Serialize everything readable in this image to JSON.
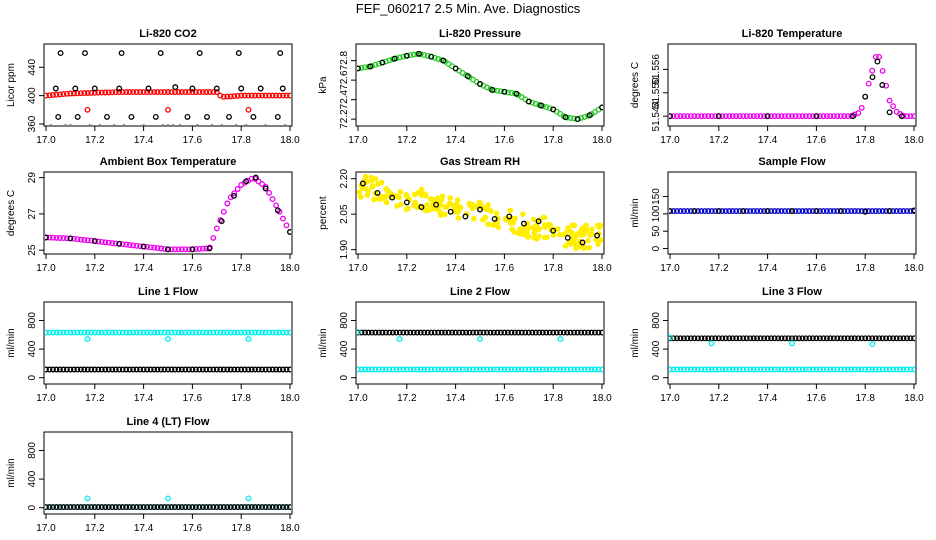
{
  "page": {
    "title": "FEF_060217  2.5 Min. Ave. Diagnostics"
  },
  "chart_data": [
    {
      "type": "scatter",
      "title": "Li-820 CO2",
      "ylabel": "Licor ppm",
      "xlim": [
        17.0,
        18.0
      ],
      "ylim": [
        360,
        470
      ],
      "xticks": [
        "17.0",
        "17.2",
        "17.4",
        "17.6",
        "17.8",
        "18.0"
      ],
      "yticks": [
        "360",
        "400",
        "440"
      ],
      "series": [
        {
          "color": "#ff0000",
          "kind": "band",
          "x": [
            17.0,
            17.1,
            17.2,
            17.3,
            17.4,
            17.5,
            17.6,
            17.7,
            17.72,
            17.8,
            17.9,
            18.0
          ],
          "y": [
            400,
            403,
            404,
            405,
            405,
            405,
            405,
            405,
            398,
            400,
            400,
            400
          ]
        },
        {
          "color": "#000000",
          "kind": "points",
          "x": [
            17.02,
            17.08,
            17.1,
            17.18,
            17.22,
            17.28,
            17.32,
            17.4,
            17.48,
            17.5,
            17.52,
            17.55,
            17.62,
            17.68,
            17.72,
            17.78,
            17.82,
            17.9,
            17.98,
            17.05,
            17.13,
            17.25,
            17.35,
            17.45,
            17.58,
            17.66,
            17.75,
            17.85,
            17.95,
            17.06,
            17.16,
            17.31,
            17.47,
            17.63,
            17.79,
            17.96
          ],
          "y": [
            355,
            355,
            355,
            355,
            355,
            355,
            355,
            355,
            355,
            355,
            355,
            355,
            355,
            355,
            355,
            355,
            355,
            355,
            355,
            370,
            370,
            370,
            370,
            370,
            370,
            370,
            370,
            370,
            370,
            460,
            460,
            460,
            460,
            460,
            460,
            460
          ]
        },
        {
          "color": "#000000",
          "kind": "points",
          "x": [
            17.04,
            17.12,
            17.2,
            17.3,
            17.42,
            17.53,
            17.6,
            17.7,
            17.8,
            17.88,
            17.97
          ],
          "y": [
            410,
            410,
            410,
            410,
            410,
            412,
            410,
            410,
            410,
            410,
            410
          ]
        },
        {
          "color": "#ff0000",
          "kind": "points",
          "x": [
            17.17,
            17.5,
            17.83
          ],
          "y": [
            380,
            380,
            380
          ]
        }
      ]
    },
    {
      "type": "scatter",
      "title": "Li-820 Pressure",
      "ylabel": "kPa",
      "xlim": [
        17.0,
        18.0
      ],
      "ylim": [
        72.15,
        72.95
      ],
      "xticks": [
        "17.0",
        "17.2",
        "17.4",
        "17.6",
        "17.8",
        "18.0"
      ],
      "yticks": [
        "72.2",
        "72.4",
        "72.6",
        "72.8"
      ],
      "series": [
        {
          "color": "#22cc22",
          "kind": "band",
          "x": [
            17.0,
            17.05,
            17.1,
            17.15,
            17.2,
            17.25,
            17.3,
            17.35,
            17.4,
            17.45,
            17.5,
            17.55,
            17.6,
            17.65,
            17.7,
            17.75,
            17.8,
            17.85,
            17.9,
            17.95,
            18.0
          ],
          "y": [
            72.72,
            72.74,
            72.78,
            72.82,
            72.85,
            72.87,
            72.84,
            72.8,
            72.72,
            72.64,
            72.56,
            72.5,
            72.48,
            72.46,
            72.38,
            72.34,
            72.3,
            72.22,
            72.2,
            72.24,
            72.32
          ]
        },
        {
          "color": "#000000",
          "kind": "points",
          "x": [
            17.0,
            17.05,
            17.1,
            17.15,
            17.2,
            17.25,
            17.3,
            17.35,
            17.4,
            17.45,
            17.5,
            17.55,
            17.6,
            17.65,
            17.7,
            17.75,
            17.8,
            17.85,
            17.9,
            17.95,
            18.0
          ],
          "y": [
            72.72,
            72.74,
            72.78,
            72.82,
            72.85,
            72.87,
            72.84,
            72.8,
            72.72,
            72.64,
            72.56,
            72.5,
            72.48,
            72.46,
            72.38,
            72.34,
            72.3,
            72.22,
            72.2,
            72.24,
            72.32
          ]
        }
      ]
    },
    {
      "type": "scatter",
      "title": "Li-820 Temperature",
      "ylabel": "degrees C",
      "xlim": [
        17.0,
        18.0
      ],
      "ylim": [
        51.542,
        51.562
      ],
      "xticks": [
        "17.0",
        "17.2",
        "17.4",
        "17.6",
        "17.8",
        "18.0"
      ],
      "yticks": [
        "51.544",
        "51.550",
        "51.556"
      ],
      "series": [
        {
          "color": "#ee00ee",
          "kind": "band",
          "x": [
            17.0,
            17.2,
            17.4,
            17.6,
            17.7,
            17.74,
            17.78,
            17.8,
            17.83,
            17.85,
            17.87,
            17.9,
            17.93,
            17.96,
            18.0
          ],
          "y": [
            51.544,
            51.544,
            51.544,
            51.544,
            51.544,
            51.544,
            51.545,
            51.549,
            51.556,
            51.561,
            51.556,
            51.548,
            51.545,
            51.544,
            51.544
          ]
        },
        {
          "color": "#000000",
          "kind": "points",
          "x": [
            17.0,
            17.2,
            17.4,
            17.6,
            17.75,
            17.8,
            17.83,
            17.85,
            17.87,
            17.9,
            17.95
          ],
          "y": [
            51.544,
            51.544,
            51.544,
            51.544,
            51.544,
            51.549,
            51.554,
            51.558,
            51.552,
            51.545,
            51.544
          ]
        }
      ]
    },
    {
      "type": "scatter",
      "title": "Ambient Box Temperature",
      "ylabel": "degrees C",
      "xlim": [
        17.0,
        18.0
      ],
      "ylim": [
        24.9,
        29.2
      ],
      "xticks": [
        "17.0",
        "17.2",
        "17.4",
        "17.6",
        "17.8",
        "18.0"
      ],
      "yticks": [
        "25",
        "27",
        "29"
      ],
      "series": [
        {
          "color": "#ee00ee",
          "kind": "band",
          "x": [
            17.0,
            17.1,
            17.2,
            17.3,
            17.4,
            17.5,
            17.6,
            17.67,
            17.7,
            17.75,
            17.8,
            17.85,
            17.9,
            17.95,
            18.0
          ],
          "y": [
            25.7,
            25.65,
            25.5,
            25.35,
            25.2,
            25.05,
            25.05,
            25.1,
            26.2,
            27.8,
            28.6,
            29.0,
            28.5,
            27.3,
            26.0
          ]
        },
        {
          "color": "#000000",
          "kind": "points",
          "x": [
            17.0,
            17.1,
            17.2,
            17.3,
            17.4,
            17.5,
            17.6,
            17.67,
            17.72,
            17.77,
            17.82,
            17.86,
            17.9,
            17.95,
            18.0
          ],
          "y": [
            25.7,
            25.65,
            25.5,
            25.35,
            25.2,
            25.05,
            25.05,
            25.1,
            26.6,
            28.0,
            28.8,
            29.0,
            28.4,
            27.2,
            26.0
          ]
        }
      ]
    },
    {
      "type": "scatter",
      "title": "Gas Stream RH",
      "ylabel": "percent",
      "xlim": [
        17.0,
        18.0
      ],
      "ylim": [
        1.89,
        2.22
      ],
      "xticks": [
        "17.0",
        "17.2",
        "17.4",
        "17.6",
        "17.8",
        "18.0"
      ],
      "yticks": [
        "1.90",
        "2.05",
        "2.20"
      ],
      "series": [
        {
          "color": "#ffee00",
          "kind": "cloud",
          "x": [
            17.0,
            17.1,
            17.2,
            17.3,
            17.4,
            17.5,
            17.6,
            17.7,
            17.8,
            17.9,
            18.0
          ],
          "y": [
            2.17,
            2.15,
            2.12,
            2.1,
            2.08,
            2.06,
            2.03,
            2.0,
            1.98,
            1.95,
            1.96
          ],
          "spread": 0.05
        },
        {
          "color": "#000000",
          "kind": "points",
          "x": [
            17.02,
            17.08,
            17.14,
            17.2,
            17.26,
            17.32,
            17.38,
            17.44,
            17.5,
            17.56,
            17.62,
            17.68,
            17.74,
            17.8,
            17.86,
            17.92,
            17.98
          ],
          "y": [
            2.18,
            2.14,
            2.12,
            2.1,
            2.08,
            2.09,
            2.06,
            2.04,
            2.07,
            2.03,
            2.04,
            2.01,
            2.02,
            1.98,
            1.95,
            1.93,
            1.96
          ]
        }
      ]
    },
    {
      "type": "scatter",
      "title": "Sample Flow",
      "ylabel": "ml/min",
      "xlim": [
        17.0,
        18.0
      ],
      "ylim": [
        -10,
        215
      ],
      "xticks": [
        "17.0",
        "17.2",
        "17.4",
        "17.6",
        "17.8",
        "18.0"
      ],
      "yticks": [
        "0",
        "50",
        "100",
        "150"
      ],
      "series": [
        {
          "color": "#0000cc",
          "kind": "band",
          "x": [
            17.0,
            17.5,
            18.0
          ],
          "y": [
            108,
            108,
            108
          ]
        },
        {
          "color": "#000000",
          "kind": "points",
          "x": [
            17.0,
            17.1,
            17.2,
            17.3,
            17.4,
            17.5,
            17.6,
            17.7,
            17.8,
            17.9,
            18.0
          ],
          "y": [
            108,
            108,
            108,
            108,
            108,
            108,
            108,
            108,
            106,
            108,
            110
          ]
        }
      ]
    },
    {
      "type": "scatter",
      "title": "Line 1 Flow",
      "ylabel": "ml/min",
      "xlim": [
        17.0,
        18.0
      ],
      "ylim": [
        -60,
        1030
      ],
      "xticks": [
        "17.0",
        "17.2",
        "17.4",
        "17.6",
        "17.8",
        "18.0"
      ],
      "yticks": [
        "0",
        "400",
        "800"
      ],
      "series": [
        {
          "color": "#00eeee",
          "kind": "band",
          "x": [
            17.0,
            17.5,
            18.0
          ],
          "y": [
            630,
            630,
            630
          ]
        },
        {
          "color": "#000000",
          "kind": "band",
          "x": [
            17.0,
            17.5,
            18.0
          ],
          "y": [
            115,
            115,
            115
          ]
        },
        {
          "color": "#00eeee",
          "kind": "points",
          "x": [
            17.17,
            17.5,
            17.83
          ],
          "y": [
            540,
            540,
            540
          ]
        }
      ]
    },
    {
      "type": "scatter",
      "title": "Line 2 Flow",
      "ylabel": "ml/min",
      "xlim": [
        17.0,
        18.0
      ],
      "ylim": [
        -60,
        1030
      ],
      "xticks": [
        "17.0",
        "17.2",
        "17.4",
        "17.6",
        "17.8",
        "18.0"
      ],
      "yticks": [
        "0",
        "400",
        "800"
      ],
      "series": [
        {
          "color": "#000000",
          "kind": "band",
          "x": [
            17.0,
            17.5,
            18.0
          ],
          "y": [
            630,
            630,
            630
          ]
        },
        {
          "color": "#00eeee",
          "kind": "band",
          "x": [
            17.0,
            17.5,
            18.0
          ],
          "y": [
            115,
            115,
            115
          ]
        },
        {
          "color": "#00eeee",
          "kind": "points",
          "x": [
            17.0,
            17.17,
            17.5,
            17.83
          ],
          "y": [
            640,
            540,
            540,
            540
          ]
        }
      ]
    },
    {
      "type": "scatter",
      "title": "Line 3 Flow",
      "ylabel": "ml/min",
      "xlim": [
        17.0,
        18.0
      ],
      "ylim": [
        -60,
        1030
      ],
      "xticks": [
        "17.0",
        "17.2",
        "17.4",
        "17.6",
        "17.8",
        "18.0"
      ],
      "yticks": [
        "0",
        "400",
        "800"
      ],
      "series": [
        {
          "color": "#000000",
          "kind": "band",
          "x": [
            17.0,
            17.5,
            18.0
          ],
          "y": [
            550,
            550,
            550
          ]
        },
        {
          "color": "#00eeee",
          "kind": "band",
          "x": [
            17.0,
            17.5,
            18.0
          ],
          "y": [
            115,
            115,
            115
          ]
        },
        {
          "color": "#00eeee",
          "kind": "points",
          "x": [
            17.0,
            17.17,
            17.5,
            17.83
          ],
          "y": [
            560,
            480,
            480,
            470
          ]
        }
      ]
    },
    {
      "type": "scatter",
      "title": "Line 4 (LT) Flow",
      "ylabel": "ml/min",
      "xlim": [
        17.0,
        18.0
      ],
      "ylim": [
        -60,
        1030
      ],
      "xticks": [
        "17.0",
        "17.2",
        "17.4",
        "17.6",
        "17.8",
        "18.0"
      ],
      "yticks": [
        "0",
        "400",
        "800"
      ],
      "series": [
        {
          "color": "#00eeee",
          "kind": "band",
          "x": [
            17.0,
            17.5,
            18.0
          ],
          "y": [
            8,
            8,
            8
          ]
        },
        {
          "color": "#000000",
          "kind": "band",
          "x": [
            17.0,
            17.5,
            18.0
          ],
          "y": [
            8,
            8,
            8
          ]
        },
        {
          "color": "#00eeee",
          "kind": "points",
          "x": [
            17.17,
            17.5,
            17.83
          ],
          "y": [
            130,
            130,
            130
          ]
        }
      ]
    }
  ]
}
